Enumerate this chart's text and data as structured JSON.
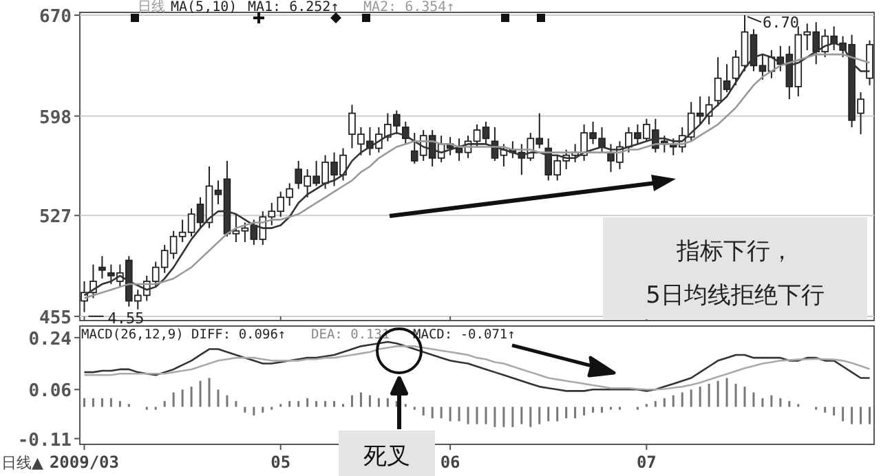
{
  "chart_data": [
    {
      "type": "candlestick",
      "tick_labels": "y",
      "grid": "y",
      "ylim": [
        452,
        672
      ],
      "yticks": [
        455,
        527,
        598,
        670
      ],
      "categories": [
        "2009/03",
        null,
        null,
        null,
        null,
        null,
        null,
        null,
        null,
        null,
        null,
        null,
        null,
        null,
        null,
        null,
        null,
        null,
        null,
        null,
        null,
        null,
        "05",
        null,
        null,
        null,
        null,
        null,
        null,
        null,
        null,
        null,
        null,
        null,
        null,
        null,
        null,
        null,
        null,
        null,
        null,
        "06",
        null,
        null,
        null,
        null,
        null,
        null,
        null,
        null,
        null,
        null,
        null,
        null,
        null,
        null,
        null,
        null,
        null,
        null,
        null,
        null,
        null,
        "07",
        null,
        null,
        null,
        null,
        null,
        null,
        null,
        null,
        null,
        null,
        null,
        null,
        null,
        null,
        null,
        null,
        null,
        null,
        null,
        null,
        null,
        null,
        null,
        null,
        null
      ],
      "ohlc": [
        [
          466,
          480,
          458,
          472
        ],
        [
          472,
          492,
          468,
          480
        ],
        [
          490,
          498,
          482,
          488
        ],
        [
          486,
          492,
          478,
          484
        ],
        [
          480,
          492,
          476,
          486
        ],
        [
          495,
          498,
          462,
          466
        ],
        [
          466,
          474,
          460,
          470
        ],
        [
          470,
          484,
          466,
          480
        ],
        [
          480,
          494,
          476,
          490
        ],
        [
          490,
          506,
          486,
          502
        ],
        [
          500,
          516,
          496,
          512
        ],
        [
          512,
          524,
          508,
          515
        ],
        [
          515,
          532,
          512,
          528
        ],
        [
          535,
          540,
          518,
          522
        ],
        [
          522,
          562,
          518,
          548
        ],
        [
          545,
          552,
          535,
          542
        ],
        [
          553,
          566,
          512,
          514
        ],
        [
          514,
          528,
          508,
          516
        ],
        [
          516,
          522,
          508,
          518
        ],
        [
          520,
          524,
          506,
          510
        ],
        [
          510,
          530,
          506,
          526
        ],
        [
          526,
          536,
          520,
          530
        ],
        [
          530,
          544,
          526,
          540
        ],
        [
          540,
          550,
          534,
          546
        ],
        [
          560,
          566,
          546,
          550
        ],
        [
          548,
          560,
          540,
          555
        ],
        [
          555,
          566,
          548,
          550
        ],
        [
          550,
          570,
          546,
          565
        ],
        [
          565,
          572,
          548,
          556
        ],
        [
          556,
          575,
          552,
          570
        ],
        [
          585,
          606,
          575,
          600
        ],
        [
          578,
          590,
          570,
          585
        ],
        [
          580,
          590,
          570,
          575
        ],
        [
          575,
          590,
          572,
          585
        ],
        [
          583,
          600,
          580,
          592
        ],
        [
          599,
          602,
          585,
          591
        ],
        [
          590,
          594,
          578,
          582
        ],
        [
          573,
          586,
          564,
          566
        ],
        [
          570,
          588,
          566,
          584
        ],
        [
          584,
          588,
          562,
          568
        ],
        [
          568,
          584,
          565,
          578
        ],
        [
          578,
          583,
          570,
          575
        ],
        [
          575,
          582,
          566,
          572
        ],
        [
          572,
          584,
          568,
          580
        ],
        [
          580,
          592,
          576,
          588
        ],
        [
          590,
          594,
          578,
          582
        ],
        [
          580,
          590,
          566,
          568
        ],
        [
          570,
          578,
          562,
          574
        ],
        [
          574,
          580,
          568,
          572
        ],
        [
          572,
          578,
          556,
          568
        ],
        [
          568,
          586,
          566,
          582
        ],
        [
          582,
          600,
          575,
          578
        ],
        [
          575,
          582,
          552,
          556
        ],
        [
          556,
          570,
          552,
          566
        ],
        [
          566,
          574,
          560,
          570
        ],
        [
          570,
          578,
          565,
          572
        ],
        [
          570,
          592,
          566,
          586
        ],
        [
          586,
          594,
          578,
          582
        ],
        [
          582,
          590,
          572,
          576
        ],
        [
          572,
          578,
          558,
          566
        ],
        [
          565,
          580,
          560,
          576
        ],
        [
          576,
          590,
          572,
          586
        ],
        [
          586,
          592,
          578,
          582
        ],
        [
          582,
          596,
          580,
          592
        ],
        [
          588,
          596,
          572,
          575
        ],
        [
          580,
          584,
          572,
          578
        ],
        [
          578,
          582,
          570,
          576
        ],
        [
          576,
          590,
          572,
          584
        ],
        [
          583,
          608,
          580,
          600
        ],
        [
          600,
          612,
          592,
          598
        ],
        [
          598,
          612,
          592,
          606
        ],
        [
          609,
          640,
          605,
          625
        ],
        [
          623,
          635,
          615,
          617
        ],
        [
          625,
          645,
          620,
          640
        ],
        [
          634,
          670,
          630,
          658
        ],
        [
          656,
          660,
          630,
          634
        ],
        [
          634,
          642,
          624,
          630
        ],
        [
          630,
          645,
          625,
          640
        ],
        [
          640,
          648,
          630,
          635
        ],
        [
          642,
          648,
          610,
          619
        ],
        [
          619,
          662,
          612,
          656
        ],
        [
          656,
          664,
          645,
          658
        ],
        [
          658,
          665,
          635,
          644
        ],
        [
          644,
          660,
          640,
          655
        ],
        [
          655,
          662,
          645,
          650
        ],
        [
          650,
          655,
          640,
          645
        ],
        [
          649,
          656,
          590,
          595
        ],
        [
          600,
          615,
          585,
          610
        ],
        [
          625,
          652,
          620,
          649
        ]
      ],
      "series": [
        {
          "type": "line",
          "color": "#333333",
          "values": [
            470,
            474,
            478,
            480,
            484,
            480,
            477,
            474,
            476,
            482,
            490,
            500,
            510,
            518,
            525,
            530,
            530,
            528,
            524,
            520,
            518,
            518,
            520,
            526,
            536,
            542,
            546,
            550,
            552,
            556,
            566,
            572,
            576,
            580,
            584,
            586,
            584,
            580,
            576,
            574,
            572,
            574,
            576,
            578,
            578,
            578,
            576,
            574,
            572,
            570,
            572,
            572,
            570,
            570,
            568,
            568,
            572,
            574,
            576,
            574,
            574,
            576,
            578,
            580,
            582,
            582,
            580,
            580,
            586,
            592,
            600,
            606,
            612,
            622,
            632,
            640,
            642,
            640,
            636,
            634,
            636,
            640,
            644,
            648,
            650,
            648,
            636,
            630,
            630
          ]
        },
        {
          "type": "line",
          "color": "#999999",
          "values": [
            468,
            470,
            472,
            474,
            476,
            478,
            478,
            478,
            478,
            480,
            482,
            486,
            490,
            496,
            502,
            508,
            514,
            518,
            520,
            522,
            522,
            524,
            524,
            526,
            528,
            532,
            536,
            540,
            544,
            548,
            552,
            558,
            562,
            568,
            572,
            576,
            578,
            580,
            580,
            580,
            578,
            578,
            576,
            576,
            576,
            576,
            576,
            576,
            574,
            574,
            574,
            572,
            572,
            572,
            572,
            572,
            572,
            572,
            572,
            572,
            572,
            574,
            574,
            576,
            578,
            578,
            578,
            578,
            580,
            584,
            588,
            592,
            598,
            604,
            612,
            620,
            626,
            630,
            634,
            636,
            638,
            640,
            642,
            642,
            642,
            642,
            640,
            638,
            636
          ]
        }
      ],
      "annotations": [
        "日线",
        "MA(5,10)",
        "MA1: 6.252↑",
        "MA2: 6.354↑",
        "指标下行，",
        "5日均线拒绝下行",
        "4.55",
        "6.70"
      ]
    },
    {
      "type": "bar",
      "grid": false,
      "ylim": [
        -0.13,
        0.28
      ],
      "yticks": [
        0.24,
        0.06,
        -0.11
      ],
      "categories": [
        "2009/03",
        null,
        null,
        null,
        null,
        null,
        null,
        null,
        null,
        null,
        null,
        null,
        null,
        null,
        null,
        null,
        null,
        null,
        null,
        null,
        null,
        null,
        "05",
        null,
        null,
        null,
        null,
        null,
        null,
        null,
        null,
        null,
        null,
        null,
        null,
        null,
        null,
        null,
        null,
        null,
        null,
        "06",
        null,
        null,
        null,
        null,
        null,
        null,
        null,
        null,
        null,
        null,
        null,
        null,
        null,
        null,
        null,
        null,
        null,
        null,
        null,
        null,
        null,
        "07",
        null,
        null,
        null,
        null,
        null,
        null,
        null,
        null,
        null,
        null,
        null,
        null,
        null,
        null,
        null,
        null,
        null,
        null,
        null,
        null,
        null,
        null,
        null,
        null,
        null
      ],
      "series": [
        {
          "type": "bar",
          "color": "#777777",
          "values": [
            0.03,
            0.03,
            0.03,
            0.03,
            0.02,
            0.01,
            0,
            -0.01,
            -0.01,
            0.02,
            0.05,
            0.06,
            0.07,
            0.09,
            0.1,
            0.06,
            0.04,
            0.02,
            -0.02,
            -0.03,
            -0.02,
            -0.01,
            0.01,
            0.02,
            0.02,
            0.03,
            0.02,
            0.02,
            0.02,
            0.01,
            0.04,
            0.05,
            0.04,
            0.03,
            0.03,
            0.02,
            0.01,
            -0.01,
            -0.03,
            -0.04,
            -0.04,
            -0.05,
            -0.05,
            -0.06,
            -0.06,
            -0.06,
            -0.07,
            -0.07,
            -0.07,
            -0.06,
            -0.07,
            -0.06,
            -0.05,
            -0.05,
            -0.04,
            -0.04,
            -0.03,
            -0.02,
            -0.02,
            -0.01,
            -0.01,
            0,
            -0.01,
            0.01,
            0.02,
            0.03,
            0.04,
            0.05,
            0.06,
            0.07,
            0.08,
            0.09,
            0.1,
            0.08,
            0.07,
            0.05,
            0.03,
            0.04,
            0.03,
            0.02,
            0.01,
            0,
            -0.01,
            -0.02,
            -0.03,
            -0.05,
            -0.06,
            -0.06,
            -0.06
          ]
        },
        {
          "type": "line",
          "color": "#333333",
          "values": [
            0.12,
            0.12,
            0.125,
            0.125,
            0.13,
            0.13,
            0.12,
            0.115,
            0.11,
            0.12,
            0.13,
            0.145,
            0.16,
            0.18,
            0.2,
            0.2,
            0.19,
            0.18,
            0.17,
            0.16,
            0.15,
            0.15,
            0.155,
            0.16,
            0.165,
            0.17,
            0.17,
            0.175,
            0.18,
            0.19,
            0.2,
            0.21,
            0.215,
            0.22,
            0.225,
            0.22,
            0.21,
            0.2,
            0.19,
            0.18,
            0.17,
            0.16,
            0.155,
            0.15,
            0.14,
            0.13,
            0.12,
            0.11,
            0.1,
            0.09,
            0.08,
            0.07,
            0.065,
            0.06,
            0.055,
            0.055,
            0.055,
            0.06,
            0.06,
            0.06,
            0.06,
            0.06,
            0.06,
            0.055,
            0.06,
            0.07,
            0.08,
            0.09,
            0.1,
            0.12,
            0.14,
            0.16,
            0.17,
            0.18,
            0.18,
            0.17,
            0.17,
            0.17,
            0.17,
            0.16,
            0.16,
            0.17,
            0.17,
            0.16,
            0.16,
            0.14,
            0.12,
            0.1,
            0.1
          ]
        },
        {
          "type": "line",
          "color": "#aaaaaa",
          "values": [
            0.11,
            0.11,
            0.11,
            0.11,
            0.115,
            0.115,
            0.115,
            0.115,
            0.115,
            0.115,
            0.12,
            0.125,
            0.13,
            0.14,
            0.15,
            0.16,
            0.165,
            0.17,
            0.17,
            0.17,
            0.165,
            0.16,
            0.16,
            0.16,
            0.16,
            0.165,
            0.165,
            0.17,
            0.17,
            0.175,
            0.18,
            0.185,
            0.19,
            0.2,
            0.205,
            0.21,
            0.21,
            0.21,
            0.205,
            0.2,
            0.195,
            0.19,
            0.185,
            0.18,
            0.17,
            0.165,
            0.155,
            0.15,
            0.14,
            0.13,
            0.12,
            0.11,
            0.1,
            0.095,
            0.09,
            0.085,
            0.08,
            0.075,
            0.07,
            0.065,
            0.065,
            0.065,
            0.062,
            0.06,
            0.06,
            0.062,
            0.066,
            0.07,
            0.076,
            0.084,
            0.094,
            0.104,
            0.114,
            0.124,
            0.134,
            0.142,
            0.15,
            0.155,
            0.16,
            0.162,
            0.164,
            0.165,
            0.166,
            0.165,
            0.164,
            0.16,
            0.152,
            0.142,
            0.131
          ]
        }
      ],
      "annotations": [
        "MACD(26,12,9)",
        "DIFF: 0.096↑",
        "DEA: 0.131",
        "MACD: -0.071↑",
        "死叉",
        "日线▲"
      ]
    }
  ]
}
